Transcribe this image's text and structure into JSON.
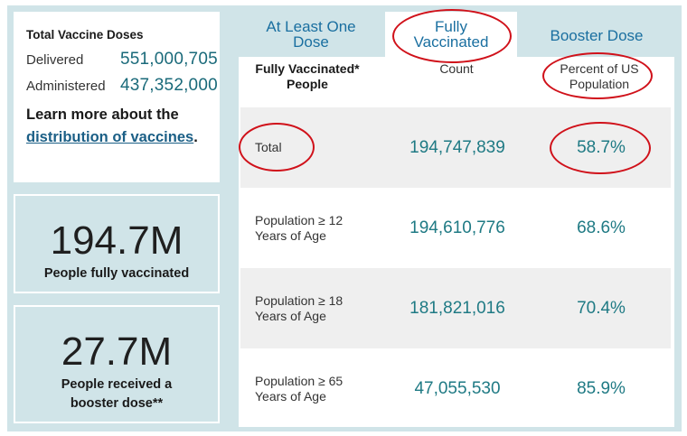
{
  "summary": {
    "title": "Total Vaccine Doses",
    "delivered_label": "Delivered",
    "delivered_value": "551,000,705",
    "administered_label": "Administered",
    "administered_value": "437,352,000",
    "learn_prefix": "Learn more about the",
    "learn_link": "distribution of vaccines",
    "learn_suffix": "."
  },
  "stats": [
    {
      "value": "194.7M",
      "label": "People fully vaccinated"
    },
    {
      "value": "27.7M",
      "label": "People received a booster dose**"
    }
  ],
  "tabs": [
    {
      "label": "At Least One Dose",
      "active": false
    },
    {
      "label": "Fully Vaccinated",
      "active": true
    },
    {
      "label": "Booster Dose",
      "active": false
    }
  ],
  "table": {
    "headers": [
      "Fully Vaccinated* People",
      "Count",
      "Percent of US Population"
    ],
    "rows": [
      {
        "label": "Total",
        "count": "194,747,839",
        "percent": "58.7%"
      },
      {
        "label": "Population ≥ 12 Years of Age",
        "count": "194,610,776",
        "percent": "68.6%"
      },
      {
        "label": "Population ≥ 18 Years of Age",
        "count": "181,821,016",
        "percent": "70.4%"
      },
      {
        "label": "Population ≥ 65 Years of Age",
        "count": "47,055,530",
        "percent": "85.9%"
      }
    ]
  },
  "colors": {
    "accent": "#1a6fa0",
    "value": "#1f7a84",
    "panel_bg": "#d0e4e8",
    "annotation": "#d0111a"
  }
}
